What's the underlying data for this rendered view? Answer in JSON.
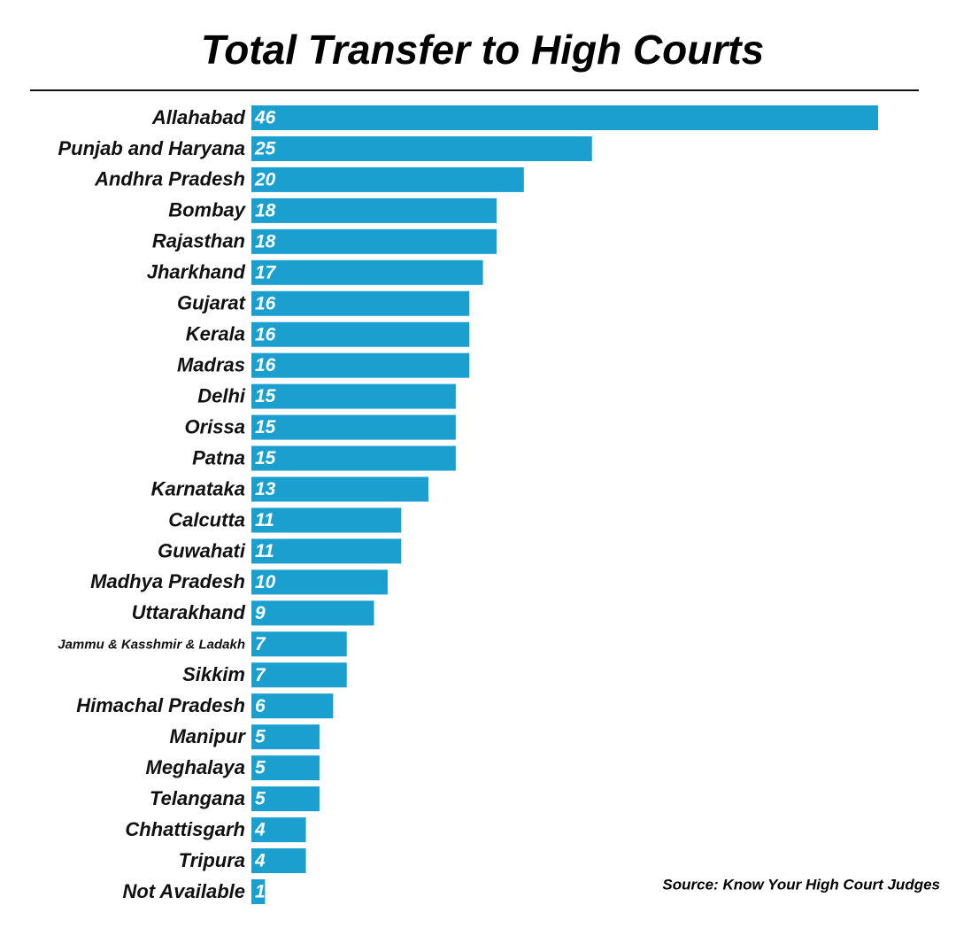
{
  "chart_data": {
    "type": "bar",
    "orientation": "horizontal",
    "title": "Total Transfer to High Courts",
    "categories": [
      "Allahabad",
      "Punjab and Haryana",
      "Andhra Pradesh",
      "Bombay",
      "Rajasthan",
      "Jharkhand",
      "Gujarat",
      "Kerala",
      "Madras",
      "Delhi",
      "Orissa",
      "Patna",
      "Karnataka",
      "Calcutta",
      "Guwahati",
      "Madhya Pradesh",
      "Uttarakhand",
      "Jammu & Kasshmir & Ladakh",
      "Sikkim",
      "Himachal Pradesh",
      "Manipur",
      "Meghalaya",
      "Telangana",
      "Chhattisgarh",
      "Tripura",
      "Not Available"
    ],
    "values": [
      46,
      25,
      20,
      18,
      18,
      17,
      16,
      16,
      16,
      15,
      15,
      15,
      13,
      11,
      11,
      10,
      9,
      7,
      7,
      6,
      5,
      5,
      5,
      4,
      4,
      1
    ],
    "color": "#1b9fce",
    "source": "Source: Know Your High Court Judges"
  }
}
